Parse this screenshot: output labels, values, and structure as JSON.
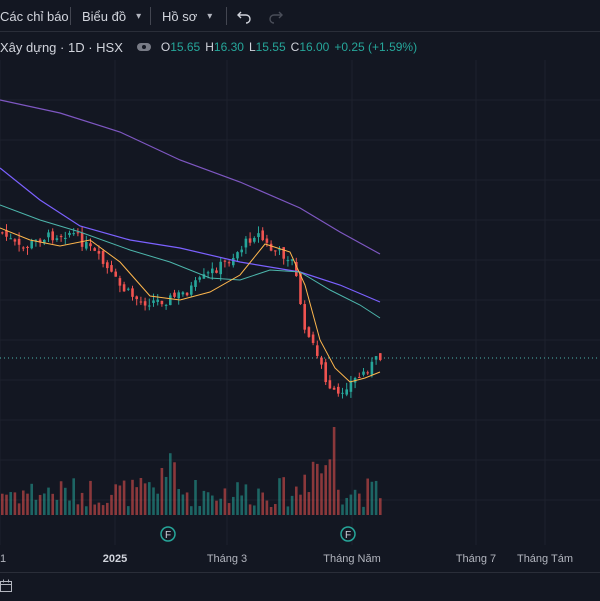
{
  "toolbar": {
    "indicators_label": "Các chỉ báo",
    "chart_label": "Biểu đồ",
    "profile_label": "Hồ sơ",
    "undo_icon": "undo-icon",
    "redo_icon": "redo-icon"
  },
  "legend": {
    "symbol": "Xây dựng · 1D · HSX",
    "open_label": "O",
    "open": "15.65",
    "high_label": "H",
    "high": "16.30",
    "low_label": "L",
    "low": "15.55",
    "close_label": "C",
    "close": "16.00",
    "change": "+0.25 (+1.59%)"
  },
  "colors": {
    "up": "#26a69a",
    "down": "#ef5350",
    "ma_purple": "#7e57c2",
    "ma_teal": "#4db6ac",
    "ma_orange": "#ffb74d"
  },
  "chart_data": {
    "type": "candlestick",
    "time_ticks": [
      "1",
      "2025",
      "Tháng 3",
      "Tháng Năm",
      "Tháng 7",
      "Tháng Tám"
    ],
    "events": [
      {
        "label": "F",
        "tick": "2025"
      },
      {
        "label": "F",
        "tick": "Tháng Năm"
      }
    ],
    "price_line": true
  },
  "bottombar": {
    "calendar_icon": "calendar-icon"
  }
}
